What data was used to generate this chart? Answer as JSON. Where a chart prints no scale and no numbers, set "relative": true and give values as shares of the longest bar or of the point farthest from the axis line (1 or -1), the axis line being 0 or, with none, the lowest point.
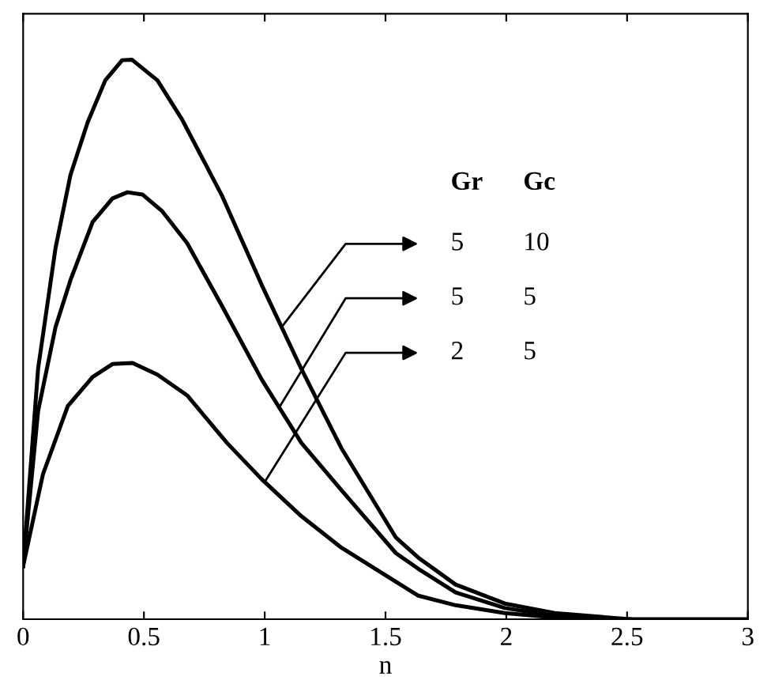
{
  "chart_data": {
    "type": "line",
    "relative": true,
    "xlabel": "n",
    "xlim": [
      0,
      3
    ],
    "xticks": [
      0,
      0.5,
      1,
      1.5,
      2,
      2.5,
      3
    ],
    "tick_labels": "x",
    "grid": false,
    "legend": false,
    "marker": "none",
    "line_style": "solid",
    "annotations": [
      "Gr",
      "Gc",
      "5",
      "10",
      "5",
      "5",
      "2",
      "5"
    ],
    "series": [
      {
        "color": "#000000",
        "x": [
          0,
          0.062,
          0.134,
          0.196,
          0.267,
          0.34,
          0.41,
          0.45,
          0.556,
          0.658,
          0.823,
          0.988,
          1.152,
          1.317,
          1.543,
          1.636,
          1.79,
          1.994,
          2.2,
          2.51,
          3.0
        ],
        "values": [
          0.095,
          0.448,
          0.663,
          0.794,
          0.888,
          0.963,
          0.999,
          1.0,
          0.963,
          0.893,
          0.757,
          0.597,
          0.447,
          0.306,
          0.146,
          0.11,
          0.062,
          0.028,
          0.011,
          0,
          0
        ]
      },
      {
        "color": "#000000",
        "x": [
          0,
          0.062,
          0.134,
          0.196,
          0.288,
          0.37,
          0.432,
          0.494,
          0.576,
          0.679,
          0.823,
          0.988,
          1.152,
          1.317,
          1.543,
          1.636,
          1.79,
          1.994,
          2.2,
          2.41
        ],
        "values": [
          0.095,
          0.372,
          0.522,
          0.606,
          0.71,
          0.752,
          0.763,
          0.759,
          0.729,
          0.672,
          0.56,
          0.428,
          0.315,
          0.231,
          0.118,
          0.09,
          0.048,
          0.02,
          0.006,
          0
        ]
      },
      {
        "color": "#000000",
        "x": [
          0,
          0.082,
          0.185,
          0.288,
          0.37,
          0.453,
          0.556,
          0.679,
          0.844,
          0.988,
          1.152,
          1.317,
          1.543,
          1.636,
          1.79,
          1.994,
          2.2,
          2.51
        ],
        "values": [
          0.095,
          0.259,
          0.381,
          0.433,
          0.456,
          0.458,
          0.437,
          0.4,
          0.315,
          0.25,
          0.184,
          0.128,
          0.067,
          0.042,
          0.025,
          0.011,
          0.003,
          0
        ]
      }
    ]
  }
}
